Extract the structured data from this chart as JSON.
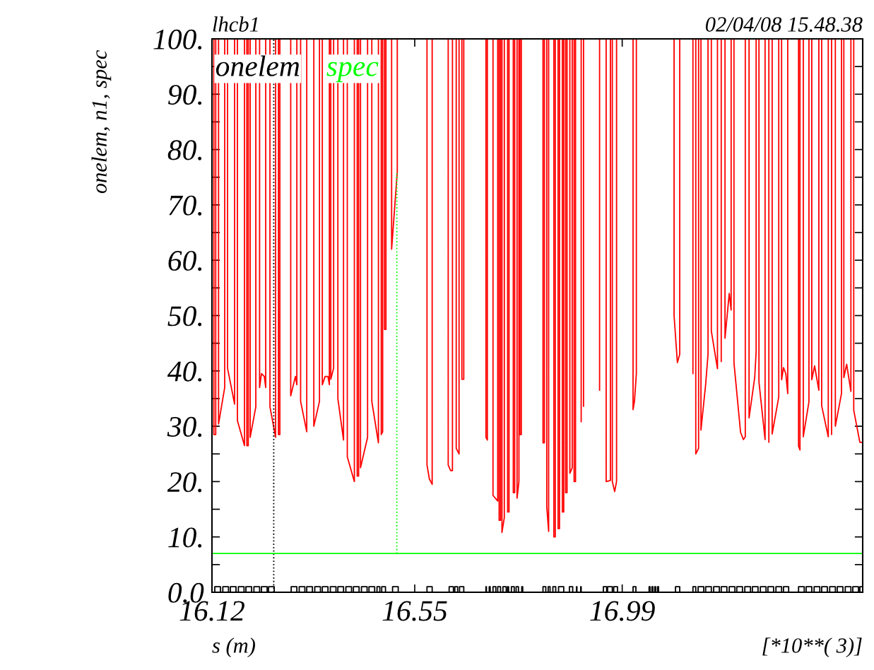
{
  "chart_data": {
    "type": "line",
    "title": "lhcb1",
    "subtitle": "02/04/08 15.48.38",
    "xlabel": "s (m)",
    "ylabel": "onelem, n1, spec",
    "annotations": [
      "[*10**( 3)]"
    ],
    "xlim": [
      16.12,
      17.5
    ],
    "xticks": [
      16.12,
      16.55,
      16.99
    ],
    "ylim": [
      0,
      100
    ],
    "yticks": [
      {
        "value": 0,
        "label": "0.0"
      },
      {
        "value": 5,
        "label": null
      },
      {
        "value": 10,
        "label": "10."
      },
      {
        "value": 15,
        "label": null
      },
      {
        "value": 20,
        "label": "20."
      },
      {
        "value": 25,
        "label": null
      },
      {
        "value": 30,
        "label": "30."
      },
      {
        "value": 35,
        "label": null
      },
      {
        "value": 40,
        "label": "40."
      },
      {
        "value": 45,
        "label": null
      },
      {
        "value": 50,
        "label": "50."
      },
      {
        "value": 55,
        "label": null
      },
      {
        "value": 60,
        "label": "60."
      },
      {
        "value": 65,
        "label": null
      },
      {
        "value": 70,
        "label": "70."
      },
      {
        "value": 75,
        "label": null
      },
      {
        "value": 80,
        "label": "80."
      },
      {
        "value": 85,
        "label": null
      },
      {
        "value": 90,
        "label": "90."
      },
      {
        "value": 95,
        "label": null
      },
      {
        "value": 100,
        "label": "100."
      }
    ],
    "grid": false,
    "legend": "top left",
    "marker": "none",
    "series": [
      {
        "color": "#ff0000",
        "line_style": "solid",
        "x": [
          16.12,
          16.124,
          16.124,
          16.128,
          16.128,
          16.134,
          16.134,
          16.147,
          16.147,
          16.153,
          16.153,
          16.168,
          16.168,
          16.174,
          16.174,
          16.189,
          16.189,
          16.194,
          16.194,
          16.197,
          16.197,
          16.201,
          16.201,
          16.213,
          16.213,
          16.221,
          16.221,
          16.225,
          16.231,
          16.234,
          16.234,
          16.243,
          16.243,
          16.255,
          16.255,
          16.261,
          16.261,
          16.264,
          16.264,
          16.287,
          16.287,
          16.297,
          16.3,
          16.3,
          16.308,
          16.308,
          16.321,
          16.321,
          16.336,
          16.336,
          16.348,
          16.348,
          16.354,
          16.354,
          16.36,
          16.366,
          16.369,
          16.369,
          16.372,
          16.372,
          16.378,
          16.378,
          16.387,
          16.387,
          16.399,
          16.399,
          16.407,
          16.407,
          16.422,
          16.422,
          16.428,
          16.428,
          16.431,
          16.431,
          16.435,
          16.435,
          16.45,
          16.45,
          16.459,
          16.459,
          16.473,
          16.473,
          16.479,
          16.479,
          16.482,
          16.482,
          16.486,
          16.486,
          16.489,
          16.489,
          16.501,
          16.501,
          16.513,
          16.513,
          16.576,
          16.576,
          16.581,
          16.587,
          16.587,
          16.621,
          16.621,
          16.626,
          16.63,
          16.63,
          16.638,
          16.638,
          16.644,
          16.644,
          16.65,
          16.65,
          16.654,
          16.654,
          16.701,
          16.701,
          16.704,
          16.704,
          16.716,
          16.716,
          16.726,
          16.726,
          16.729,
          16.729,
          16.732,
          16.732,
          16.735,
          16.735,
          16.74,
          16.74,
          16.747,
          16.747,
          16.75,
          16.75,
          16.759,
          16.759,
          16.762,
          16.762,
          16.767,
          16.767,
          16.771,
          16.771,
          16.773,
          16.773,
          16.776,
          16.776,
          16.822,
          16.822,
          16.825,
          16.825,
          16.83,
          16.83,
          16.834,
          16.834,
          16.845,
          16.845,
          16.848,
          16.848,
          16.854,
          16.854,
          16.857,
          16.857,
          16.863,
          16.863,
          16.866,
          16.866,
          16.87,
          16.87,
          16.873,
          16.873,
          16.879,
          16.879,
          16.884,
          16.884,
          16.888,
          16.888,
          16.891,
          16.891,
          16.903,
          16.903,
          16.903,
          16.908,
          16.908,
          16.908,
          16.942,
          16.942,
          16.942,
          16.956,
          16.956,
          16.965,
          16.965,
          16.969,
          16.969,
          16.974,
          16.978,
          16.978,
          17.013,
          17.013,
          17.016,
          17.02,
          17.02,
          17.1,
          17.1,
          17.107,
          17.112,
          17.112,
          17.14,
          17.14,
          17.14,
          17.146,
          17.146,
          17.152,
          17.152,
          17.157,
          17.157,
          17.167,
          17.172,
          17.172,
          17.179,
          17.179,
          17.192,
          17.192,
          17.2,
          17.2,
          17.2,
          17.208,
          17.208,
          17.217,
          17.221,
          17.221,
          17.227,
          17.227,
          17.241,
          17.247,
          17.251,
          17.251,
          17.259,
          17.259,
          17.271,
          17.274,
          17.274,
          17.28,
          17.28,
          17.293,
          17.293,
          17.301,
          17.301,
          17.301,
          17.308,
          17.308,
          17.322,
          17.322,
          17.328,
          17.328,
          17.332,
          17.337,
          17.341,
          17.341,
          17.364,
          17.364,
          17.367,
          17.367,
          17.374,
          17.374,
          17.386,
          17.386,
          17.392,
          17.392,
          17.398,
          17.407,
          17.407,
          17.413,
          17.413,
          17.427,
          17.427,
          17.434,
          17.434,
          17.434,
          17.442,
          17.442,
          17.455,
          17.455,
          17.46,
          17.46,
          17.466,
          17.475,
          17.475,
          17.481,
          17.481,
          17.494,
          17.5
        ],
        "values": [
          100,
          100,
          28.5,
          28.5,
          100,
          100,
          30.4,
          37,
          100,
          100,
          40.5,
          34,
          100,
          100,
          31,
          26.5,
          100,
          100,
          26.5,
          26.5,
          100,
          100,
          28,
          33.5,
          100,
          100,
          37,
          39.5,
          39,
          37,
          100,
          100,
          33.5,
          28,
          100,
          100,
          28.5,
          28.5,
          100,
          100,
          35.5,
          39,
          37.5,
          100,
          100,
          34.5,
          29,
          100,
          100,
          30,
          34.5,
          100,
          100,
          37.5,
          39,
          39,
          37.5,
          100,
          100,
          38.5,
          40.5,
          100,
          100,
          35,
          27.5,
          100,
          100,
          24.5,
          20,
          100,
          100,
          21,
          21,
          100,
          100,
          22.5,
          28,
          100,
          100,
          34.5,
          27,
          100,
          100,
          28.5,
          29,
          100,
          100,
          47.5,
          47.5,
          100,
          100,
          62,
          76,
          100,
          100,
          23,
          20.5,
          19.5,
          100,
          100,
          23,
          22,
          22,
          100,
          100,
          26,
          25,
          100,
          100,
          38.5,
          38.5,
          100,
          100,
          28,
          27.5,
          100,
          100,
          17.5,
          16.5,
          100,
          100,
          13,
          13,
          100,
          100,
          10.8,
          13.5,
          100,
          100,
          14.5,
          14.5,
          100,
          100,
          18,
          18,
          100,
          100,
          17,
          20,
          100,
          100,
          28.5,
          28.5,
          100,
          100,
          27,
          27,
          100,
          100,
          15.5,
          11,
          100,
          100,
          10,
          10,
          100,
          100,
          11.5,
          11.5,
          100,
          100,
          14.5,
          14.5,
          100,
          100,
          18,
          18,
          100,
          100,
          21.5,
          22.5,
          100,
          100,
          20,
          20,
          100,
          100,
          30.8,
          100,
          100,
          33.6,
          100,
          100,
          36.5,
          100,
          100,
          20,
          20.2,
          100,
          100,
          20,
          18.2,
          20,
          100,
          100,
          33,
          34.5,
          39.5,
          100,
          100,
          50,
          41.5,
          43,
          100,
          100,
          39.5,
          100,
          100,
          25,
          26,
          100,
          100,
          29.3,
          37.6,
          43,
          100,
          100,
          47.2,
          40.4,
          100,
          100,
          41.7,
          100,
          100,
          45.9,
          54,
          51,
          100,
          100,
          41.5,
          28.9,
          27.6,
          28.1,
          100,
          100,
          31.5,
          38.8,
          43.4,
          100,
          100,
          38,
          27.6,
          100,
          100,
          27.1,
          100,
          100,
          28.6,
          35.3,
          100,
          100,
          38.4,
          40.6,
          39.5,
          35.9,
          100,
          100,
          26.4,
          25.7,
          100,
          100,
          28.1,
          34.4,
          100,
          100,
          38.4,
          40.9,
          36.5,
          100,
          100,
          33.7,
          28.1,
          100,
          100,
          28.5,
          100,
          100,
          30,
          35.9,
          100,
          100,
          38.8,
          41.2,
          36.3,
          100,
          100,
          32.9,
          27.1,
          27.1
        ]
      },
      {
        "type": "step",
        "name": "onelem",
        "color": "#000000",
        "line_style": "solid",
        "x": [
          16.12,
          16.126,
          16.138,
          16.143,
          16.155,
          16.159,
          16.171,
          16.176,
          16.188,
          16.192,
          16.204,
          16.209,
          16.221,
          16.225,
          16.237,
          16.24,
          16.252,
          16.288,
          16.3,
          16.305,
          16.317,
          16.321,
          16.333,
          16.338,
          16.35,
          16.354,
          16.366,
          16.371,
          16.383,
          16.387,
          16.399,
          16.404,
          16.416,
          16.42,
          16.432,
          16.437,
          16.449,
          16.453,
          16.465,
          16.47,
          16.476,
          16.48,
          16.488,
          16.503,
          16.515,
          16.576,
          16.587,
          16.623,
          16.632,
          16.635,
          16.641,
          16.645,
          16.654,
          16.701,
          16.702,
          16.708,
          16.71,
          16.716,
          16.722,
          16.726,
          16.732,
          16.737,
          16.744,
          16.747,
          16.749,
          16.755,
          16.761,
          16.765,
          16.77,
          16.777,
          16.779,
          16.822,
          16.828,
          16.833,
          16.837,
          16.843,
          16.849,
          16.855,
          16.866,
          16.878,
          16.885,
          16.893,
          16.894,
          16.902,
          16.903,
          16.95,
          16.957,
          16.959,
          16.969,
          16.972,
          16.98,
          17.013,
          17.019,
          17.047,
          17.049,
          17.053,
          17.055,
          17.059,
          17.061,
          17.065,
          17.067,
          17.103,
          17.112,
          17.14,
          17.146,
          17.151,
          17.163,
          17.167,
          17.179,
          17.184,
          17.196,
          17.2,
          17.212,
          17.217,
          17.229,
          17.233,
          17.245,
          17.25,
          17.262,
          17.266,
          17.278,
          17.283,
          17.295,
          17.299,
          17.311,
          17.316,
          17.328,
          17.332,
          17.343,
          17.364,
          17.376,
          17.38,
          17.392,
          17.397,
          17.409,
          17.413,
          17.425,
          17.43,
          17.442,
          17.446,
          17.458,
          17.463,
          17.475,
          17.479,
          17.491,
          17.494,
          17.5
        ],
        "values": [
          0,
          1,
          0,
          1,
          0,
          1,
          0,
          1,
          0,
          1,
          0,
          1,
          0,
          1,
          0,
          1,
          0,
          1,
          0,
          1,
          0,
          1,
          0,
          1,
          0,
          1,
          0,
          1,
          0,
          1,
          0,
          1,
          0,
          1,
          0,
          1,
          0,
          1,
          0,
          1,
          0,
          1,
          0,
          1,
          0,
          1,
          0,
          1,
          0,
          1,
          0,
          1,
          0,
          1,
          0,
          1,
          0,
          1,
          0,
          1,
          0,
          1,
          0,
          1,
          0,
          1,
          0,
          1,
          0,
          1,
          0,
          1,
          0,
          1,
          0,
          1,
          0,
          1,
          0,
          1,
          0,
          1,
          0,
          1,
          0,
          1,
          0,
          1,
          0,
          1,
          0,
          1,
          0,
          1,
          0,
          1,
          0,
          1,
          0,
          1,
          0,
          1,
          0,
          1,
          0,
          1,
          0,
          1,
          0,
          1,
          0,
          1,
          0,
          1,
          0,
          1,
          0,
          1,
          0,
          1,
          0,
          1,
          0,
          1,
          0,
          1,
          0,
          1,
          0,
          1,
          0,
          1,
          0,
          1,
          0,
          1,
          0,
          1,
          0,
          1,
          0,
          1,
          0,
          1,
          0,
          1,
          0
        ]
      },
      {
        "color": "#000000",
        "line_style": "dotted",
        "x": [
          16.251,
          16.251
        ],
        "values": [
          0,
          100
        ]
      },
      {
        "name": "spec",
        "color": "#00ff00",
        "line_style": "solid",
        "x": [
          16.12,
          17.5
        ],
        "values": [
          7,
          7
        ]
      },
      {
        "color": "#00ff00",
        "line_style": "dotted",
        "x": [
          16.512,
          16.512
        ],
        "values": [
          7,
          76
        ]
      }
    ]
  }
}
